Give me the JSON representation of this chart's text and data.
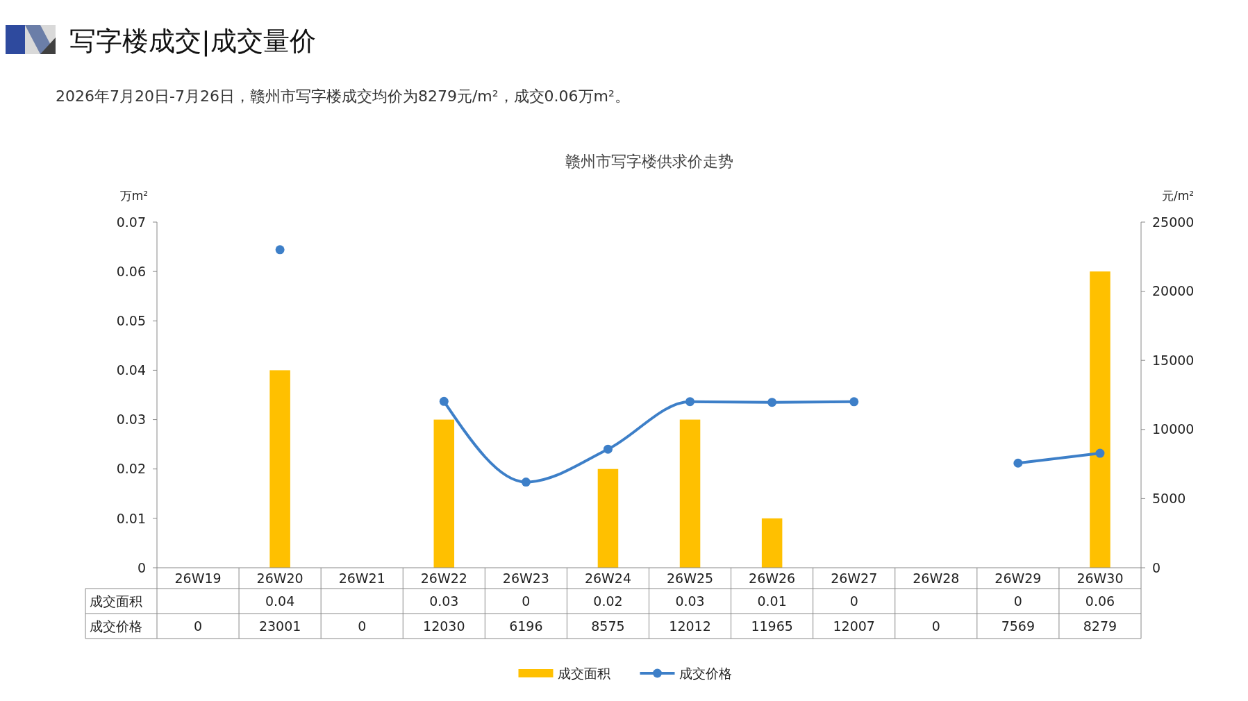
{
  "chart_data": {
    "type": "bar",
    "title": "赣州市写字楼供求价走势",
    "subtitle": "2026年7月20日-7月26日，赣州市写字楼成交均价为8279元/m²，成交0.06万m²。",
    "annotations": [
      "写字楼成交|成交量价"
    ],
    "categories": [
      "26W19",
      "26W20",
      "26W21",
      "26W22",
      "26W23",
      "26W24",
      "26W25",
      "26W26",
      "26W27",
      "26W28",
      "26W29",
      "26W30"
    ],
    "series": [
      {
        "name": "成交面积",
        "color": "#ffc000",
        "values": [
          null,
          0.04,
          null,
          0.03,
          0,
          0.02,
          0.03,
          0.01,
          0,
          null,
          0,
          0.06
        ],
        "value_labels": [
          null,
          "0.04",
          null,
          "0.03",
          "0",
          "0.02",
          "0.03",
          "0.01",
          "0",
          null,
          "0",
          "0.06"
        ]
      },
      {
        "name": "成交价格",
        "type": "line",
        "axis": "y2",
        "color": "#3d7fc8",
        "values": [
          null,
          23001,
          null,
          12030,
          6196,
          8575,
          12012,
          11965,
          12007,
          null,
          7569,
          8279
        ],
        "value_labels": [
          "0",
          "23001",
          "0",
          "12030",
          "6196",
          "8575",
          "12012",
          "11965",
          "12007",
          "0",
          "7569",
          "8279"
        ]
      }
    ],
    "ylabel": "万m²",
    "y2label": "元/m²",
    "ylim": [
      0,
      0.07
    ],
    "yticks": [
      0,
      0.01,
      0.02,
      0.03,
      0.04,
      0.05,
      0.06,
      0.07
    ],
    "y2lim": [
      0,
      25000
    ],
    "y2ticks": [
      0,
      5000,
      10000,
      15000,
      20000,
      25000
    ],
    "legend": "bottom",
    "marker": "circle",
    "line_style": "solid"
  }
}
